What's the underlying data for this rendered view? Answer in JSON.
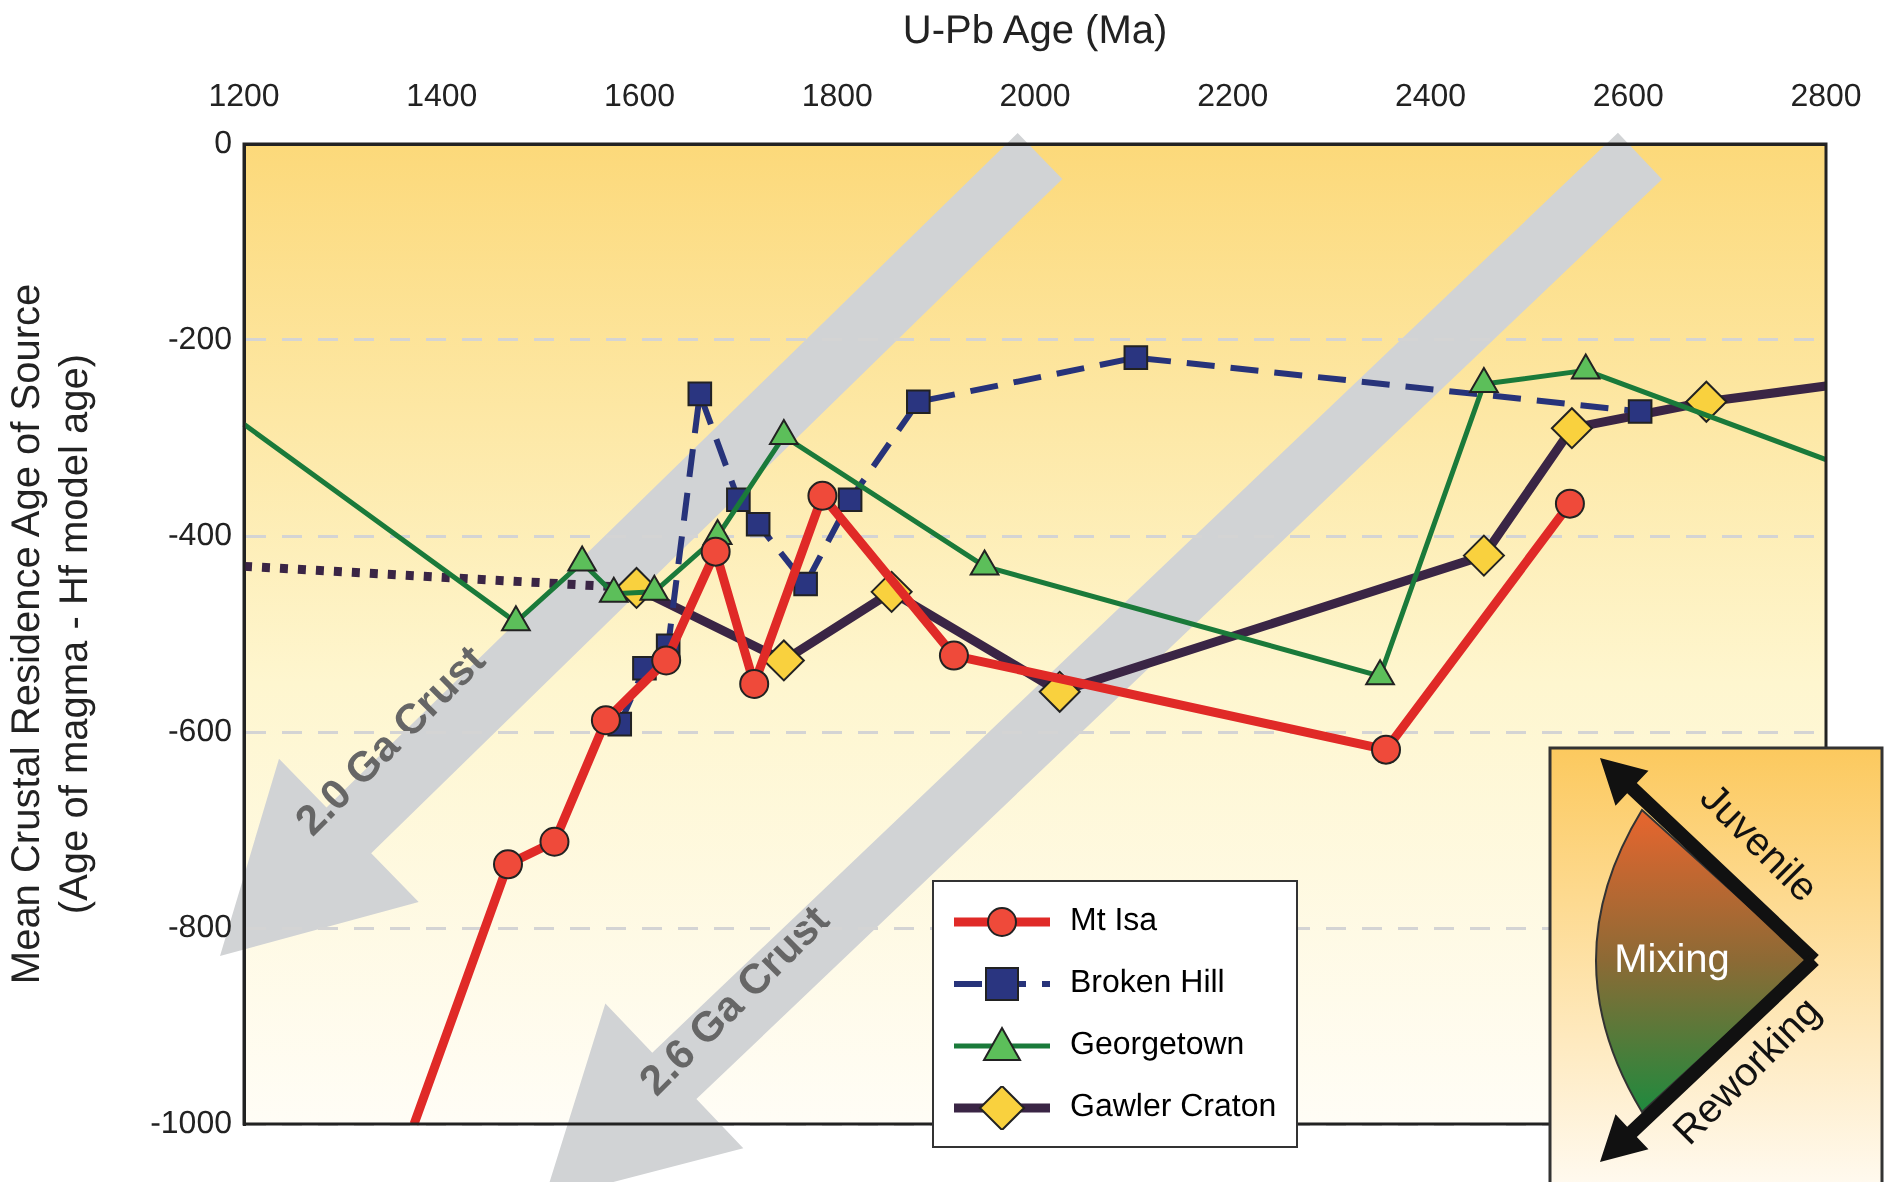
{
  "chart_data": {
    "type": "line",
    "xlabel": "U-Pb Age (Ma)",
    "ylabel": "Mean Crustal Residence Age of Source\n(Age of magma - Hf model age)",
    "xlim": [
      1200,
      2800
    ],
    "xticks": [
      1200,
      1400,
      1600,
      1800,
      2000,
      2200,
      2400,
      2600,
      2800
    ],
    "ylim": [
      -1000,
      0
    ],
    "yticks": [
      -1000,
      -800,
      -600,
      -400,
      -200,
      0
    ],
    "grid": "y",
    "legend": "bottom",
    "series": [
      {
        "name": "Mt Isa",
        "color": "#e02a27",
        "marker": "circle",
        "line_style": "solid",
        "x": [
          1372,
          1467,
          1514,
          1566,
          1627,
          1677,
          1716,
          1785,
          1918,
          2355,
          2541
        ],
        "values": [
          -1000,
          -735,
          -712,
          -588,
          -527,
          -416,
          -551,
          -359,
          -522,
          -618,
          -367
        ]
      },
      {
        "name": "Broken Hill",
        "color": "#27337a",
        "marker": "square",
        "line_style": "dashed",
        "x": [
          1580,
          1605,
          1629,
          1661,
          1700,
          1720,
          1768,
          1813,
          1882,
          2102,
          2612
        ],
        "values": [
          -592,
          -535,
          -512,
          -255,
          -363,
          -388,
          -449,
          -363,
          -263,
          -218,
          -273
        ]
      },
      {
        "name": "Georgetown",
        "color": "#1a7a3a",
        "marker": "triangle",
        "line_style": "solid",
        "x": [
          1200,
          1475,
          1542,
          1574,
          1615,
          1679,
          1746,
          1949,
          2349,
          2454,
          2557,
          2800
        ],
        "values": [
          -286,
          -488,
          -427,
          -459,
          -457,
          -400,
          -298,
          -431,
          -543,
          -245,
          -231,
          -322
        ]
      },
      {
        "name": "Gawler Craton",
        "color": "#3a2545",
        "marker": "diamond",
        "line_style": "solid",
        "x": [
          1597,
          1746,
          1855,
          2025,
          2454,
          2543,
          2679,
          2800
        ],
        "values": [
          -453,
          -527,
          -457,
          -559,
          -420,
          -290,
          -263,
          -247
        ]
      },
      {
        "color": "#3a2545",
        "marker": "none",
        "line_style": "dotted",
        "x": [
          1200,
          1597
        ],
        "values": [
          -431,
          -453
        ]
      }
    ],
    "annotations": [
      "2.0 Ga Crust",
      "2.6 Ga Crust",
      "Juvenile",
      "Mixing",
      "Reworking"
    ]
  }
}
